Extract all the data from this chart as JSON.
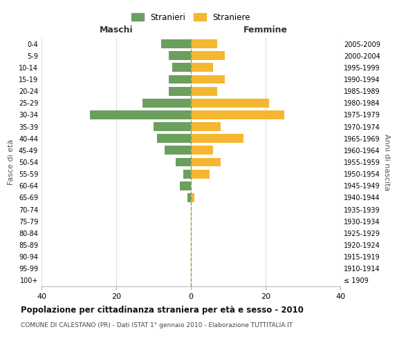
{
  "age_groups": [
    "100+",
    "95-99",
    "90-94",
    "85-89",
    "80-84",
    "75-79",
    "70-74",
    "65-69",
    "60-64",
    "55-59",
    "50-54",
    "45-49",
    "40-44",
    "35-39",
    "30-34",
    "25-29",
    "20-24",
    "15-19",
    "10-14",
    "5-9",
    "0-4"
  ],
  "birth_years": [
    "≤ 1909",
    "1910-1914",
    "1915-1919",
    "1920-1924",
    "1925-1929",
    "1930-1934",
    "1935-1939",
    "1940-1944",
    "1945-1949",
    "1950-1954",
    "1955-1959",
    "1960-1964",
    "1965-1969",
    "1970-1974",
    "1975-1979",
    "1980-1984",
    "1985-1989",
    "1990-1994",
    "1995-1999",
    "2000-2004",
    "2005-2009"
  ],
  "stranieri": [
    0,
    0,
    0,
    0,
    0,
    0,
    0,
    1,
    3,
    2,
    4,
    7,
    9,
    10,
    27,
    13,
    6,
    6,
    5,
    6,
    8
  ],
  "straniere": [
    0,
    0,
    0,
    0,
    0,
    0,
    0,
    1,
    0,
    5,
    8,
    6,
    14,
    8,
    25,
    21,
    7,
    9,
    6,
    9,
    7
  ],
  "male_color": "#6a9f5e",
  "female_color": "#f5b731",
  "center_line_color": "#a09840",
  "grid_color": "#dddddd",
  "background_color": "#ffffff",
  "xlim": 40,
  "title": "Popolazione per cittadinanza straniera per età e sesso - 2010",
  "subtitle": "COMUNE DI CALESTANO (PR) - Dati ISTAT 1° gennaio 2010 - Elaborazione TUTTITALIA.IT",
  "xlabel_left": "Maschi",
  "xlabel_right": "Femmine",
  "ylabel_left": "Fasce di età",
  "ylabel_right": "Anni di nascita",
  "legend_male": "Stranieri",
  "legend_female": "Straniere"
}
